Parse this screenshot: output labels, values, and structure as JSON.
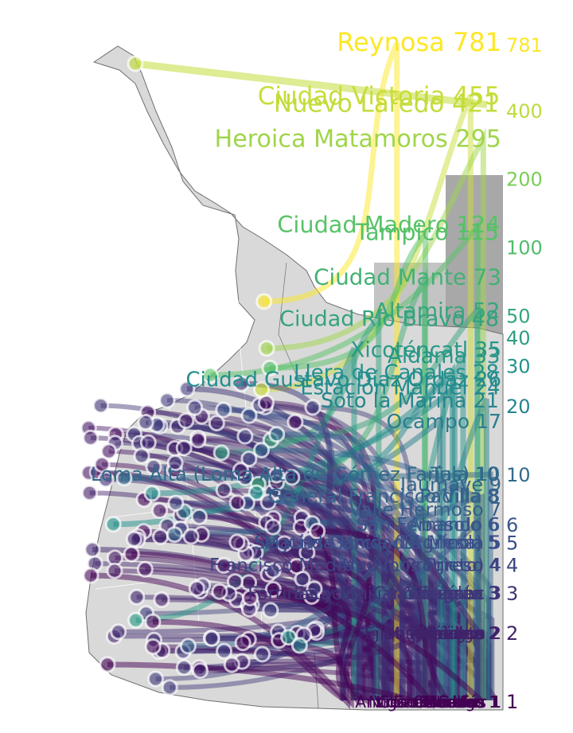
{
  "chart_data": {
    "type": "scatter",
    "description_axis": "log-scaled rank of localities; labels show locality name and count",
    "y_scale": "log",
    "y_tick_labels": [
      "1",
      "2",
      "3",
      "4",
      "5",
      "6",
      "10",
      "20",
      "30",
      "40",
      "50",
      "100",
      "200",
      "400",
      "781"
    ],
    "colormap": "viridis",
    "colors": {
      "low": "#440154",
      "mid_low": "#3b528b",
      "mid": "#21918c",
      "mid_high": "#5ec962",
      "high": "#fde725",
      "map_fill": "#d9d9d9",
      "map_stroke": "#6e6e6e",
      "panel_fill": "#a8a8a8"
    },
    "labeled_points": [
      {
        "name": "Reynosa",
        "value": 781
      },
      {
        "name": "Ciudad Victoria",
        "value": 455
      },
      {
        "name": "Nuevo Laredo",
        "value": 421
      },
      {
        "name": "Heroica Matamoros",
        "value": 295
      },
      {
        "name": "Ciudad Madero",
        "value": 124
      },
      {
        "name": "Tampico",
        "value": 115
      },
      {
        "name": "Ciudad Mante",
        "value": 73
      },
      {
        "name": "Altamira",
        "value": 52
      },
      {
        "name": "Ciudad Río Bravo",
        "value": 48
      },
      {
        "name": "Xicoténcatl",
        "value": 35
      },
      {
        "name": "Aldama",
        "value": 33
      },
      {
        "name": "Llera de Canales",
        "value": 28
      },
      {
        "name": "Ciudad Gustavo Díaz Ordaz",
        "value": 26
      },
      {
        "name": "Estación Manuel",
        "value": 24
      },
      {
        "name": "Soto la Marina",
        "value": 21
      },
      {
        "name": "Ocampo",
        "value": 17
      },
      {
        "name": "Loma Alta (Loma Alta de Gómez Farías)",
        "value": 10
      },
      {
        "name": "Tula",
        "value": 10
      },
      {
        "name": "Jaumave",
        "value": 9
      },
      {
        "name": "General Francisco Villa",
        "value": 8
      },
      {
        "name": "Padilla",
        "value": 8
      },
      {
        "name": "Valle Hermoso",
        "value": 7
      },
      {
        "name": "San Fernando",
        "value": 6
      },
      {
        "name": "Abasolo",
        "value": 6
      },
      {
        "name": "Segunda Unidad Agrícola",
        "value": 5
      },
      {
        "name": "Matías García (La Mesa)",
        "value": 5
      },
      {
        "name": "El Limón",
        "value": 5
      },
      {
        "name": "Francisco Medrano (Los Prieto)",
        "value": 4
      },
      {
        "name": "Nuevo Progreso",
        "value": 4
      },
      {
        "name": "Fortines y Emiliano Zapata",
        "value": 3
      },
      {
        "name": "Anáhuac",
        "value": 3
      },
      {
        "name": "Villagrán",
        "value": 3
      },
      {
        "name": "González",
        "value": 3
      },
      {
        "name": "Estación Cuauhtémoc",
        "value": 3
      },
      {
        "name": "Ejido Anáhuac",
        "value": 2
      },
      {
        "name": "Palmillas",
        "value": 2
      },
      {
        "name": "Bustamante",
        "value": 2
      },
      {
        "name": "Hidalgo",
        "value": 2
      },
      {
        "name": "Güémez",
        "value": 2
      },
      {
        "name": "Mainero",
        "value": 2
      },
      {
        "name": "Miquihuana",
        "value": 2
      },
      {
        "name": "Jiménez",
        "value": 2
      },
      {
        "name": "Burgos",
        "value": 2
      },
      {
        "name": "Méndez",
        "value": 1
      },
      {
        "name": "Cruillas",
        "value": 1
      },
      {
        "name": "San Nicolás",
        "value": 1
      },
      {
        "name": "Villa de Casas",
        "value": 1
      },
      {
        "name": "Guerrero",
        "value": 1
      },
      {
        "name": "Mier",
        "value": 1
      },
      {
        "name": "Camargo",
        "value": 1
      },
      {
        "name": "Antiguo Morelos",
        "value": 1
      },
      {
        "name": "Nuevo Morelos",
        "value": 1
      },
      {
        "name": "Gómez Farías",
        "value": 1
      }
    ]
  }
}
